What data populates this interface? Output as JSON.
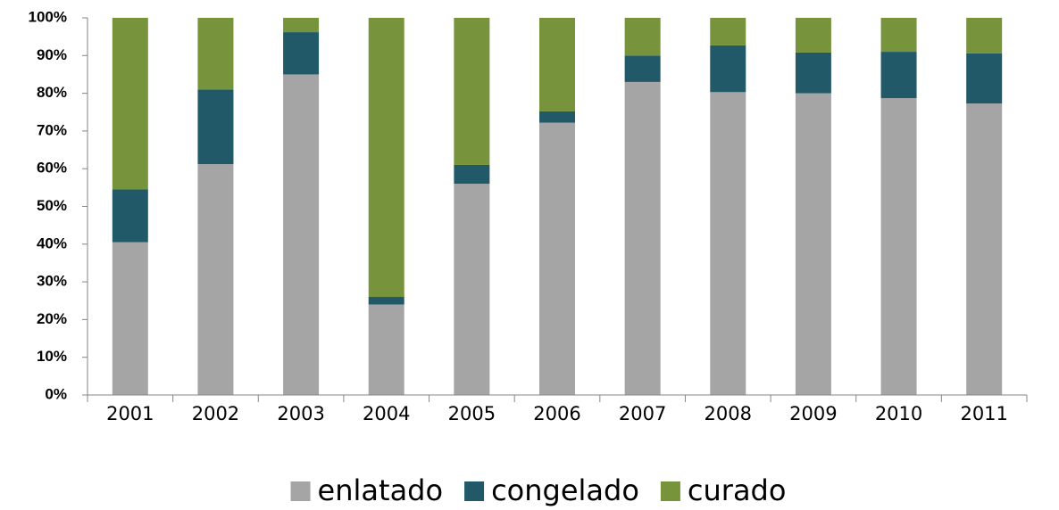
{
  "chart_data": {
    "type": "stacked_bar",
    "categories": [
      "2001",
      "2002",
      "2003",
      "2004",
      "2005",
      "2006",
      "2007",
      "2008",
      "2009",
      "2010",
      "2011"
    ],
    "series": [
      {
        "name": "enlatado",
        "color": "#a5a5a5",
        "values": [
          40.5,
          61.2,
          85,
          24,
          56,
          72.2,
          83,
          80.3,
          80,
          78.7,
          77.3
        ]
      },
      {
        "name": "congelado",
        "color": "#215968",
        "values": [
          14,
          19.8,
          11.2,
          2,
          5,
          3,
          7,
          12.4,
          10.8,
          12.3,
          13.3
        ]
      },
      {
        "name": "curado",
        "color": "#77933c",
        "values": [
          45.5,
          19,
          3.8,
          74,
          39,
          24.8,
          10,
          7.3,
          9.2,
          9,
          9.4
        ]
      }
    ],
    "ylim": [
      0,
      100
    ],
    "yticks": [
      {
        "value": 0,
        "label": "0%"
      },
      {
        "value": 10,
        "label": "10%"
      },
      {
        "value": 20,
        "label": "20%"
      },
      {
        "value": 30,
        "label": "30%"
      },
      {
        "value": 40,
        "label": "40%"
      },
      {
        "value": 50,
        "label": "50%"
      },
      {
        "value": 60,
        "label": "60%"
      },
      {
        "value": 70,
        "label": "70%"
      },
      {
        "value": 80,
        "label": "80%"
      },
      {
        "value": 90,
        "label": "90%"
      },
      {
        "value": 100,
        "label": "100%"
      }
    ],
    "grid": false,
    "legend": "bottom"
  }
}
